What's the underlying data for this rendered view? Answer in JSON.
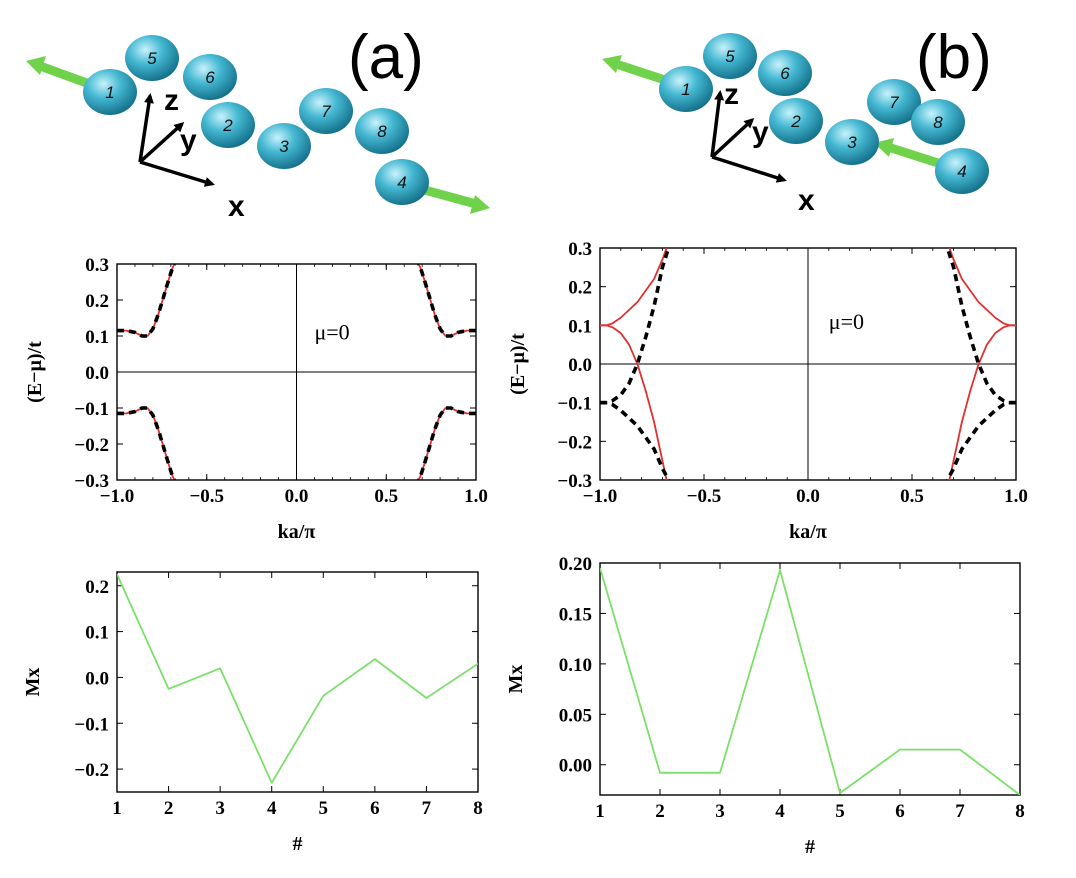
{
  "panels": [
    {
      "label": "(a)",
      "schematic": {
        "atoms": [
          "1",
          "2",
          "3",
          "4",
          "5",
          "6",
          "7",
          "8"
        ],
        "axes": {
          "x": "x",
          "y": "y",
          "z": "z"
        },
        "arrows": [
          {
            "on_atom": "1",
            "direction": "left"
          },
          {
            "on_atom": "4",
            "direction": "right"
          }
        ]
      }
    },
    {
      "label": "(b)",
      "schematic": {
        "atoms": [
          "1",
          "2",
          "3",
          "4",
          "5",
          "6",
          "7",
          "8"
        ],
        "axes": {
          "x": "x",
          "y": "y",
          "z": "z"
        },
        "arrows": [
          {
            "on_atom": "1",
            "direction": "left"
          },
          {
            "on_atom": "4",
            "direction": "left"
          }
        ]
      }
    }
  ],
  "colors": {
    "atom": "#3fb4cf",
    "arrow": "#6fd24a",
    "band_red": "#e03030",
    "mx_line": "#7be06a"
  },
  "chart_data": [
    {
      "id": "band-a",
      "type": "line",
      "xlabel": "ka/π",
      "ylabel": "(E−μ)/t",
      "xlim": [
        -1.0,
        1.0
      ],
      "ylim": [
        -0.3,
        0.3
      ],
      "xticks": [
        "−1.0",
        "−0.5",
        "0.0",
        "0.5",
        "1.0"
      ],
      "yticks": [
        "0.3",
        "0.2",
        "0.1",
        "0.0",
        "−0.1",
        "−0.2",
        "−0.3"
      ],
      "annotation": "μ=0",
      "series": [
        {
          "style": "red-solid",
          "x": [
            -1.0,
            -0.95,
            -0.9,
            -0.86,
            -0.83,
            -0.8,
            -0.77,
            -0.74,
            -0.71,
            -0.69,
            -0.68
          ],
          "y": [
            0.115,
            0.115,
            0.11,
            0.1,
            0.1,
            0.12,
            0.16,
            0.21,
            0.26,
            0.29,
            0.3
          ]
        },
        {
          "style": "black-dashed",
          "x": [
            -1.0,
            -0.95,
            -0.9,
            -0.86,
            -0.83,
            -0.8,
            -0.77,
            -0.74,
            -0.71,
            -0.69,
            -0.68
          ],
          "y": [
            0.115,
            0.115,
            0.11,
            0.1,
            0.1,
            0.12,
            0.16,
            0.21,
            0.26,
            0.29,
            0.3
          ]
        },
        {
          "style": "red-solid",
          "x": [
            -1.0,
            -0.95,
            -0.9,
            -0.86,
            -0.83,
            -0.8,
            -0.77,
            -0.74,
            -0.71,
            -0.69,
            -0.68
          ],
          "y": [
            -0.115,
            -0.115,
            -0.11,
            -0.1,
            -0.1,
            -0.12,
            -0.16,
            -0.21,
            -0.26,
            -0.29,
            -0.3
          ]
        },
        {
          "style": "black-dashed",
          "x": [
            -1.0,
            -0.95,
            -0.9,
            -0.86,
            -0.83,
            -0.8,
            -0.77,
            -0.74,
            -0.71,
            -0.69,
            -0.68
          ],
          "y": [
            -0.115,
            -0.115,
            -0.11,
            -0.1,
            -0.1,
            -0.12,
            -0.16,
            -0.21,
            -0.26,
            -0.29,
            -0.3
          ]
        },
        {
          "style": "red-solid",
          "x": [
            1.0,
            0.95,
            0.9,
            0.86,
            0.83,
            0.8,
            0.77,
            0.74,
            0.71,
            0.69,
            0.68
          ],
          "y": [
            0.115,
            0.115,
            0.11,
            0.1,
            0.1,
            0.12,
            0.16,
            0.21,
            0.26,
            0.29,
            0.3
          ]
        },
        {
          "style": "black-dashed",
          "x": [
            1.0,
            0.95,
            0.9,
            0.86,
            0.83,
            0.8,
            0.77,
            0.74,
            0.71,
            0.69,
            0.68
          ],
          "y": [
            0.115,
            0.115,
            0.11,
            0.1,
            0.1,
            0.12,
            0.16,
            0.21,
            0.26,
            0.29,
            0.3
          ]
        },
        {
          "style": "red-solid",
          "x": [
            1.0,
            0.95,
            0.9,
            0.86,
            0.83,
            0.8,
            0.77,
            0.74,
            0.71,
            0.69,
            0.68
          ],
          "y": [
            -0.115,
            -0.115,
            -0.11,
            -0.1,
            -0.1,
            -0.12,
            -0.16,
            -0.21,
            -0.26,
            -0.29,
            -0.3
          ]
        },
        {
          "style": "black-dashed",
          "x": [
            1.0,
            0.95,
            0.9,
            0.86,
            0.83,
            0.8,
            0.77,
            0.74,
            0.71,
            0.69,
            0.68
          ],
          "y": [
            -0.115,
            -0.115,
            -0.11,
            -0.1,
            -0.1,
            -0.12,
            -0.16,
            -0.21,
            -0.26,
            -0.29,
            -0.3
          ]
        }
      ]
    },
    {
      "id": "band-b",
      "type": "line",
      "xlabel": "ka/π",
      "ylabel": "(E−μ)/t",
      "xlim": [
        -1.0,
        1.0
      ],
      "ylim": [
        -0.3,
        0.3
      ],
      "xticks": [
        "−1.0",
        "−0.5",
        "0.0",
        "0.5",
        "1.0"
      ],
      "yticks": [
        "0.3",
        "0.2",
        "0.1",
        "0.0",
        "−0.1",
        "−0.2",
        "−0.3"
      ],
      "annotation": "μ=0",
      "series": [
        {
          "style": "red-solid",
          "x": [
            -1.0,
            -0.97,
            -0.94,
            -0.9,
            -0.86,
            -0.82,
            -0.78,
            -0.74,
            -0.7,
            -0.68
          ],
          "y": [
            0.1,
            0.1,
            0.095,
            0.08,
            0.05,
            0.0,
            -0.07,
            -0.15,
            -0.25,
            -0.3
          ]
        },
        {
          "style": "red-solid",
          "x": [
            -1.0,
            -0.97,
            -0.94,
            -0.9,
            -0.86,
            -0.82,
            -0.78,
            -0.74,
            -0.7,
            -0.68
          ],
          "y": [
            0.1,
            0.1,
            0.105,
            0.12,
            0.14,
            0.16,
            0.19,
            0.22,
            0.27,
            0.3
          ]
        },
        {
          "style": "black-dashed",
          "x": [
            -1.0,
            -0.97,
            -0.94,
            -0.9,
            -0.86,
            -0.82,
            -0.78,
            -0.74,
            -0.7,
            -0.67
          ],
          "y": [
            -0.1,
            -0.1,
            -0.095,
            -0.08,
            -0.05,
            0.0,
            0.07,
            0.15,
            0.25,
            0.3
          ]
        },
        {
          "style": "black-dashed",
          "x": [
            -1.0,
            -0.97,
            -0.94,
            -0.9,
            -0.86,
            -0.82,
            -0.78,
            -0.74,
            -0.7,
            -0.67
          ],
          "y": [
            -0.1,
            -0.1,
            -0.105,
            -0.12,
            -0.14,
            -0.16,
            -0.19,
            -0.22,
            -0.27,
            -0.3
          ]
        },
        {
          "style": "red-solid",
          "x": [
            1.0,
            0.97,
            0.94,
            0.9,
            0.86,
            0.82,
            0.78,
            0.74,
            0.7,
            0.68
          ],
          "y": [
            0.1,
            0.1,
            0.105,
            0.12,
            0.14,
            0.16,
            0.19,
            0.22,
            0.27,
            0.3
          ]
        },
        {
          "style": "red-solid",
          "x": [
            1.0,
            0.97,
            0.94,
            0.9,
            0.86,
            0.82,
            0.78,
            0.74,
            0.7,
            0.68
          ],
          "y": [
            0.1,
            0.1,
            0.095,
            0.08,
            0.05,
            0.0,
            -0.07,
            -0.15,
            -0.25,
            -0.3
          ]
        },
        {
          "style": "black-dashed",
          "x": [
            1.0,
            0.97,
            0.94,
            0.9,
            0.86,
            0.82,
            0.78,
            0.74,
            0.7,
            0.67
          ],
          "y": [
            -0.1,
            -0.1,
            -0.095,
            -0.08,
            -0.05,
            0.0,
            0.07,
            0.15,
            0.25,
            0.3
          ]
        },
        {
          "style": "black-dashed",
          "x": [
            1.0,
            0.97,
            0.94,
            0.9,
            0.86,
            0.82,
            0.78,
            0.74,
            0.7,
            0.67
          ],
          "y": [
            -0.1,
            -0.1,
            -0.105,
            -0.12,
            -0.14,
            -0.16,
            -0.19,
            -0.22,
            -0.27,
            -0.3
          ]
        }
      ]
    },
    {
      "id": "mx-a",
      "type": "line",
      "xlabel": "#",
      "ylabel": "Mx",
      "xlim": [
        1,
        8
      ],
      "ylim": [
        -0.25,
        0.23
      ],
      "xticks": [
        "1",
        "2",
        "3",
        "4",
        "5",
        "6",
        "7",
        "8"
      ],
      "yticks": [
        "0.2",
        "0.1",
        "0.0",
        "−0.1",
        "−0.2"
      ],
      "yticks_values": [
        0.2,
        0.1,
        0.0,
        -0.1,
        -0.2
      ],
      "series": [
        {
          "style": "green",
          "x": [
            1,
            2,
            3,
            4,
            5,
            6,
            7,
            8
          ],
          "y": [
            0.225,
            -0.025,
            0.02,
            -0.23,
            -0.04,
            0.04,
            -0.045,
            0.03
          ]
        }
      ]
    },
    {
      "id": "mx-b",
      "type": "line",
      "xlabel": "#",
      "ylabel": "Mx",
      "xlim": [
        1,
        8
      ],
      "ylim": [
        -0.03,
        0.2
      ],
      "xticks": [
        "1",
        "2",
        "3",
        "4",
        "5",
        "6",
        "7",
        "8"
      ],
      "yticks": [
        "0.20",
        "0.15",
        "0.10",
        "0.05",
        "0.00"
      ],
      "yticks_values": [
        0.2,
        0.15,
        0.1,
        0.05,
        0.0
      ],
      "series": [
        {
          "style": "green",
          "x": [
            1,
            2,
            3,
            4,
            5,
            6,
            7,
            8
          ],
          "y": [
            0.195,
            -0.008,
            -0.008,
            0.193,
            -0.028,
            0.015,
            0.015,
            -0.03
          ]
        }
      ]
    }
  ]
}
